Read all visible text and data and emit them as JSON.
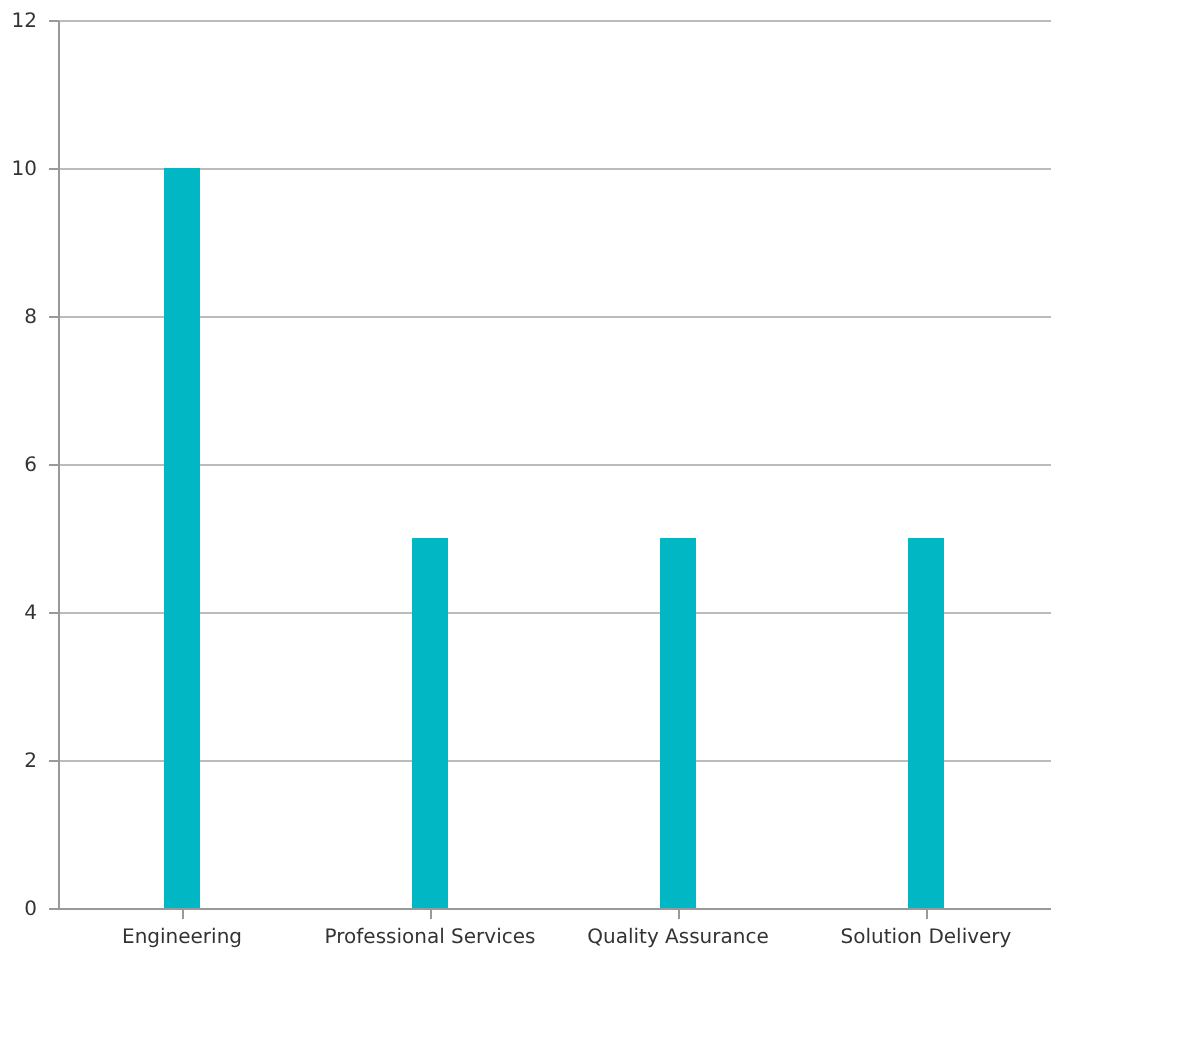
{
  "chart_data": {
    "type": "bar",
    "categories": [
      "Engineering",
      "Professional Services",
      "Quality Assurance",
      "Solution Delivery"
    ],
    "values": [
      10,
      5,
      5,
      5
    ],
    "color": "#00b7c3",
    "ylim": [
      0,
      12
    ],
    "yticks": [
      0,
      2,
      4,
      6,
      8,
      10,
      12
    ],
    "grid": "y"
  }
}
